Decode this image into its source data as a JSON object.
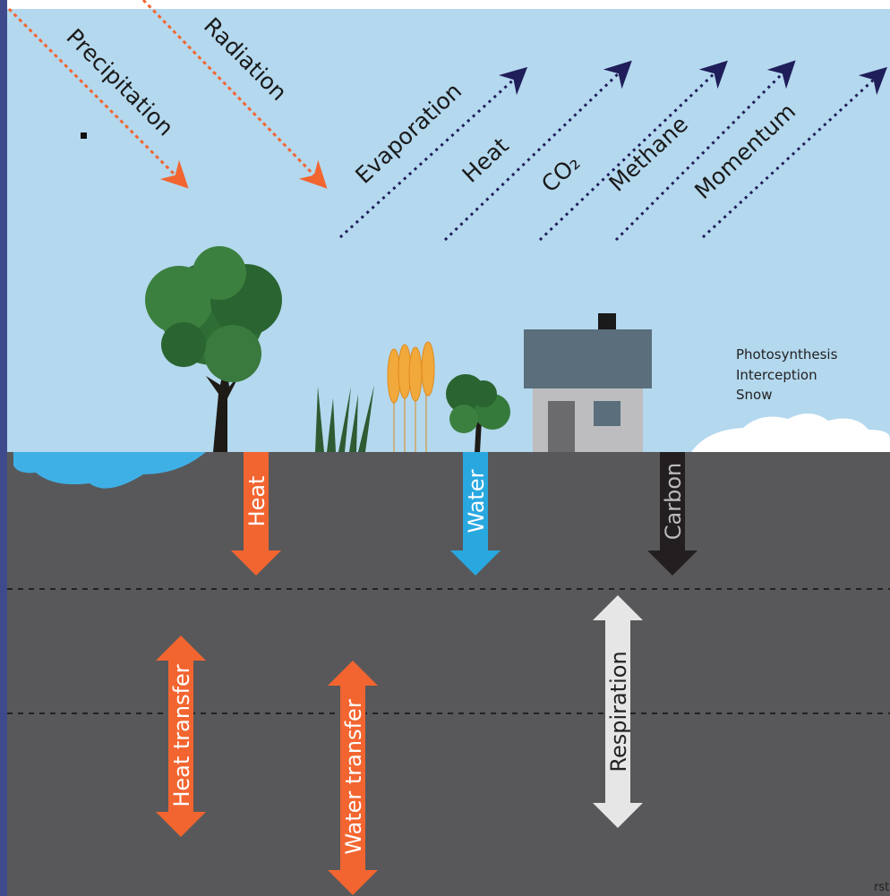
{
  "atmosphere": {
    "downward": [
      "Precipitation",
      "Radiation"
    ],
    "upward": [
      "Evaporation",
      "Heat",
      "CO₂",
      "Methane",
      "Momentum"
    ]
  },
  "surface": {
    "processes": [
      "Photosynthesis",
      "Interception",
      "Snow"
    ]
  },
  "soil": {
    "fluxes": [
      "Heat",
      "Water",
      "Carbon"
    ],
    "transfers": [
      "Heat transfer",
      "Water transfer",
      "Respiration"
    ]
  },
  "footer": {
    "credit": "rst"
  }
}
